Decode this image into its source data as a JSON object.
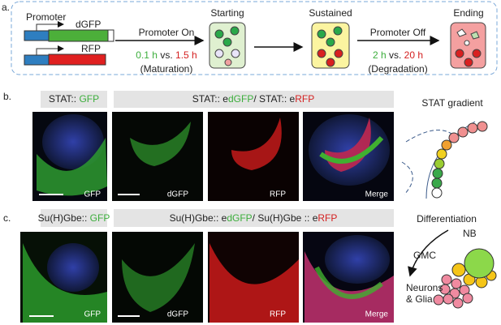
{
  "panel_a": {
    "label": "a.",
    "construct": {
      "promoter": "Promoter",
      "dgfp": "dGFP",
      "rfp": "RFP"
    },
    "promoter_on": {
      "title": "Promoter On",
      "fast": "0.1 h",
      "vs": "vs.",
      "slow": "1.5 h",
      "note": "(Maturation)"
    },
    "states": [
      "Starting",
      "Sustained",
      "Ending"
    ],
    "promoter_off": {
      "title": "Promoter Off",
      "fast": "2 h",
      "vs": "vs.",
      "slow": "20 h",
      "note": "(Degradation)"
    }
  },
  "panel_b": {
    "label": "b.",
    "header_left": [
      "STAT:: ",
      "GFP"
    ],
    "header_right": [
      "STAT:: e",
      "dGFP",
      "/ STAT:: e",
      "RFP"
    ],
    "image_labels": [
      "GFP",
      "dGFP",
      "RFP",
      "Merge"
    ],
    "side_title": "STAT gradient"
  },
  "panel_c": {
    "label": "c.",
    "header_left": [
      "Su(H)Gbe:: ",
      "GFP"
    ],
    "header_right": [
      "Su(H)Gbe:: e",
      "dGFP",
      "/ Su(H)Gbe :: e",
      "RFP"
    ],
    "image_labels": [
      "GFP",
      "dGFP",
      "RFP",
      "Merge"
    ],
    "side_title": "Differentiation",
    "cells": {
      "nb": "NB",
      "gmc": "GMC",
      "neurons": "Neurons",
      "glia": "& Glia"
    }
  }
}
